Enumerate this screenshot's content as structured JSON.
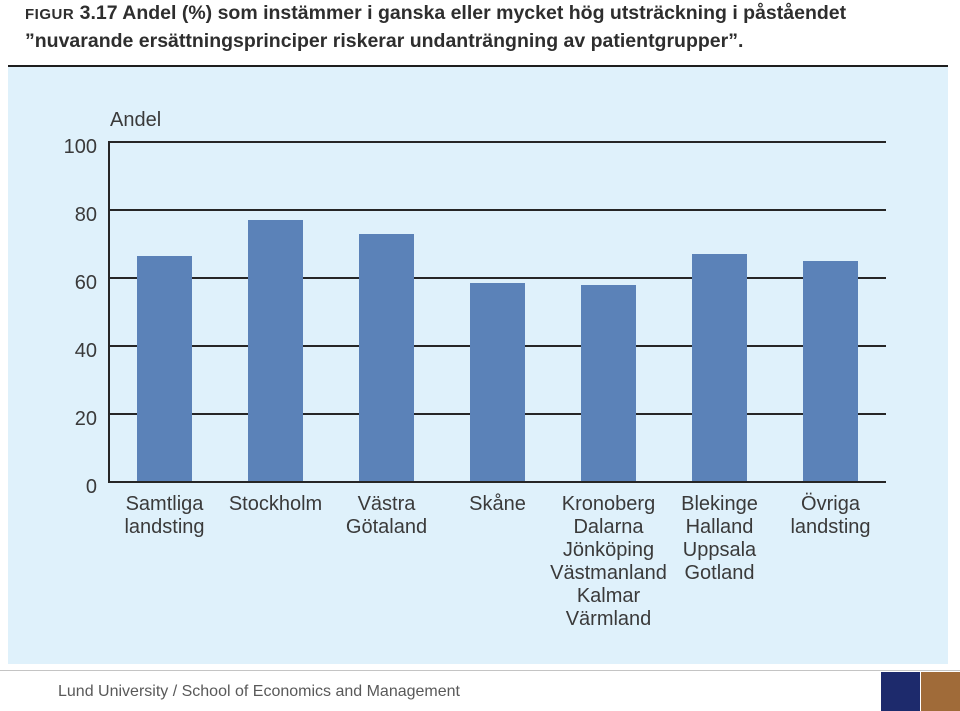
{
  "figure": {
    "label": "FIGUR",
    "number": "3.17"
  },
  "footer": {
    "institution": "Lund University / School of Economics and Management"
  },
  "colors": {
    "panel_background": "#dff1fb",
    "bar": "#5b82b8",
    "gridline": "#262626",
    "brand_navy": "#1d2a6c",
    "brand_copper": "#a06b39"
  },
  "chart_data": {
    "type": "bar",
    "title": "Andel (%) som instämmer i ganska eller mycket hög utsträckning i påståendet\n”nuvarande ersättningsprinciper riskerar undanträngning av patientgrupper”.",
    "ylabel": "Andel",
    "categories": [
      "Samtliga landsting",
      "Stockholm",
      "Västra Götaland",
      "Skåne",
      "Kronoberg Dalarna Jönköping Västmanland Kalmar Värmland",
      "Blekinge Halland Uppsala Gotland",
      "Övriga landsting"
    ],
    "values": [
      66.5,
      77,
      73,
      58.5,
      58,
      67,
      65
    ],
    "ylim": [
      0,
      100
    ],
    "yticks": [
      0,
      20,
      40,
      60,
      80,
      100
    ],
    "grid": "horizontal"
  }
}
